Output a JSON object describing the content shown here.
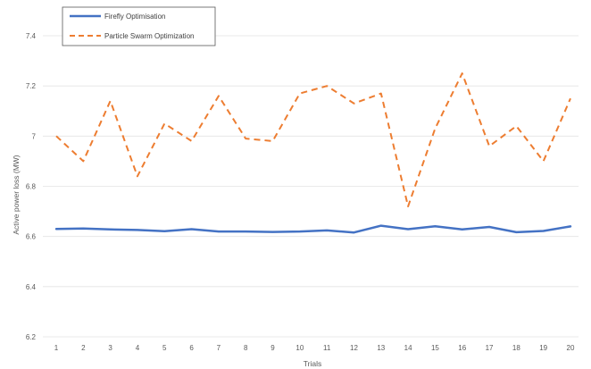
{
  "chart_data": {
    "type": "line",
    "xlabel": "Trials",
    "ylabel": "Active power loss (MW)",
    "categories": [
      "1",
      "2",
      "3",
      "4",
      "5",
      "6",
      "7",
      "8",
      "9",
      "10",
      "11",
      "12",
      "13",
      "14",
      "15",
      "16",
      "17",
      "18",
      "19",
      "20"
    ],
    "yticks": [
      "6.2",
      "6.4",
      "6.6",
      "6.8",
      "7",
      "7.2",
      "7.4"
    ],
    "ylim": [
      6.2,
      7.4
    ],
    "grid": true,
    "legend_position": "top-left",
    "series": [
      {
        "name": "Firefly Optimisation",
        "color": "#4472c4",
        "style": "solid",
        "values": [
          6.63,
          6.632,
          6.628,
          6.626,
          6.621,
          6.629,
          6.62,
          6.62,
          6.618,
          6.62,
          6.624,
          6.616,
          6.643,
          6.629,
          6.641,
          6.628,
          6.638,
          6.617,
          6.622,
          6.64
        ]
      },
      {
        "name": "Particle Swarm Optimization",
        "color": "#ed7d31",
        "style": "dashed",
        "values": [
          7.0,
          6.9,
          7.14,
          6.84,
          7.05,
          6.98,
          7.16,
          6.99,
          6.98,
          7.17,
          7.2,
          7.13,
          7.17,
          6.72,
          7.03,
          7.25,
          6.96,
          7.04,
          6.9,
          7.15
        ]
      }
    ]
  }
}
